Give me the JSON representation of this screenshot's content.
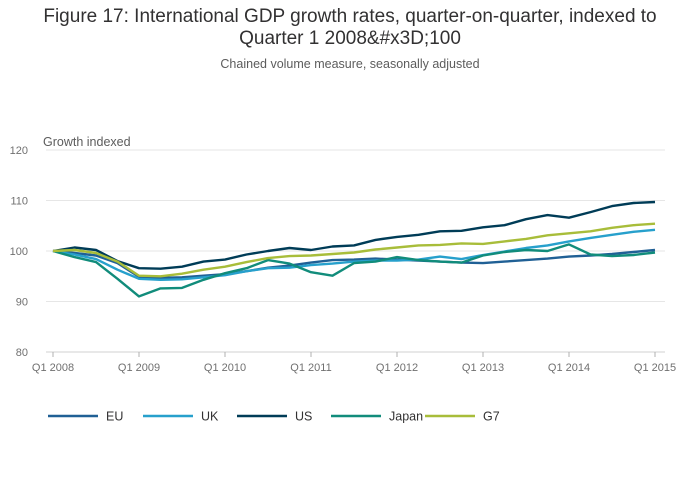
{
  "chart_data": {
    "type": "line",
    "title": "Figure 17: International GDP growth rates, quarter-on-quarter, indexed to Quarter 1 2008&#x3D;100",
    "title_lines": [
      "Figure 17: International GDP growth rates, quarter-on-quarter, indexed to",
      "Quarter 1 2008&#x3D;100"
    ],
    "subtitle": "Chained volume measure, seasonally adjusted",
    "ylabel": "Growth indexed",
    "xlabel": "",
    "ylim": [
      80,
      120
    ],
    "yticks": [
      80,
      90,
      100,
      110,
      120
    ],
    "x_tick_labels": [
      "Q1 2008",
      "Q1 2009",
      "Q1 2010",
      "Q1 2011",
      "Q1 2012",
      "Q1 2013",
      "Q1 2014",
      "Q1 2015"
    ],
    "x": [
      "Q1 2008",
      "Q2 2008",
      "Q3 2008",
      "Q4 2008",
      "Q1 2009",
      "Q2 2009",
      "Q3 2009",
      "Q4 2009",
      "Q1 2010",
      "Q2 2010",
      "Q3 2010",
      "Q4 2010",
      "Q1 2011",
      "Q2 2011",
      "Q3 2011",
      "Q4 2011",
      "Q1 2012",
      "Q2 2012",
      "Q3 2012",
      "Q4 2012",
      "Q1 2013",
      "Q2 2013",
      "Q3 2013",
      "Q4 2013",
      "Q1 2014",
      "Q2 2014",
      "Q3 2014",
      "Q4 2014",
      "Q1 2015"
    ],
    "grid": true,
    "legend_position": "bottom-left",
    "series": [
      {
        "name": "EU",
        "color": "#206095",
        "values": [
          100,
          99.6,
          99.1,
          97.6,
          94.9,
          94.7,
          94.8,
          95.1,
          95.4,
          96.0,
          96.7,
          97.1,
          97.7,
          98.2,
          98.3,
          98.5,
          98.3,
          98.1,
          97.9,
          97.7,
          97.6,
          97.9,
          98.2,
          98.5,
          98.9,
          99.1,
          99.4,
          99.8,
          100.2
        ]
      },
      {
        "name": "UK",
        "color": "#27a0cc",
        "values": [
          100,
          99.3,
          98.4,
          96.3,
          94.5,
          94.3,
          94.4,
          94.8,
          95.2,
          96.0,
          96.6,
          96.7,
          97.2,
          97.5,
          97.9,
          98.1,
          98.1,
          98.3,
          98.9,
          98.4,
          99.2,
          99.9,
          100.6,
          101.1,
          101.9,
          102.6,
          103.2,
          103.8,
          104.2
        ]
      },
      {
        "name": "US",
        "color": "#003c57",
        "values": [
          100,
          100.7,
          100.2,
          98.0,
          96.6,
          96.5,
          96.9,
          97.9,
          98.3,
          99.3,
          100.0,
          100.6,
          100.2,
          100.9,
          101.1,
          102.2,
          102.8,
          103.2,
          103.9,
          104.0,
          104.7,
          105.1,
          106.3,
          107.1,
          106.6,
          107.7,
          108.9,
          109.5,
          109.7
        ]
      },
      {
        "name": "Japan",
        "color": "#118c7b",
        "values": [
          100,
          98.8,
          97.8,
          94.5,
          91.0,
          92.6,
          92.7,
          94.3,
          95.6,
          96.6,
          98.2,
          97.5,
          95.8,
          95.1,
          97.6,
          97.9,
          98.8,
          98.2,
          97.9,
          97.7,
          99.1,
          99.8,
          100.2,
          100.0,
          101.3,
          99.3,
          99.0,
          99.2,
          99.7
        ]
      },
      {
        "name": "G7",
        "color": "#a8bd3a",
        "values": [
          100,
          100.2,
          99.6,
          97.9,
          95.1,
          95.0,
          95.5,
          96.3,
          96.9,
          97.8,
          98.6,
          99.0,
          99.1,
          99.4,
          99.7,
          100.3,
          100.7,
          101.1,
          101.2,
          101.5,
          101.4,
          101.9,
          102.4,
          103.1,
          103.5,
          103.9,
          104.6,
          105.1,
          105.4
        ]
      }
    ]
  }
}
